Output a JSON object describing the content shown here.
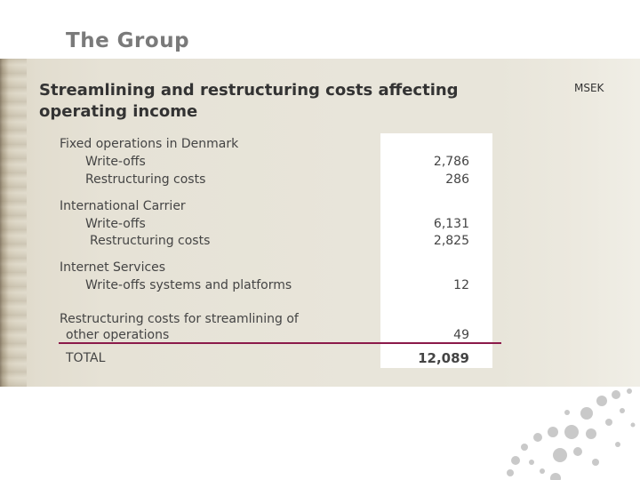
{
  "header": {
    "title": "The Group"
  },
  "slide": {
    "subtitle": "Streamlining and restructuring costs affecting operating income",
    "unit": "MSEK"
  },
  "rows": [
    {
      "label": "Fixed operations in Denmark",
      "value": ""
    },
    {
      "label": "Write-offs",
      "value": "2,786"
    },
    {
      "label": "Restructuring costs",
      "value": "286"
    },
    {
      "label": "International Carrier",
      "value": ""
    },
    {
      "label": "Write-offs",
      "value": "6,131"
    },
    {
      "label": "Restructuring costs",
      "value": "2,825"
    },
    {
      "label": "Internet Services",
      "value": ""
    },
    {
      "label": "Write-offs systems and platforms",
      "value": "12"
    },
    {
      "label": "Restructuring costs for streamlining of",
      "value": ""
    },
    {
      "label": "other operations",
      "value": "49"
    }
  ],
  "total": {
    "label": "TOTAL",
    "value": "12,089"
  },
  "colors": {
    "accent_line": "#8b1a4a",
    "panel": "#e8e5da"
  }
}
